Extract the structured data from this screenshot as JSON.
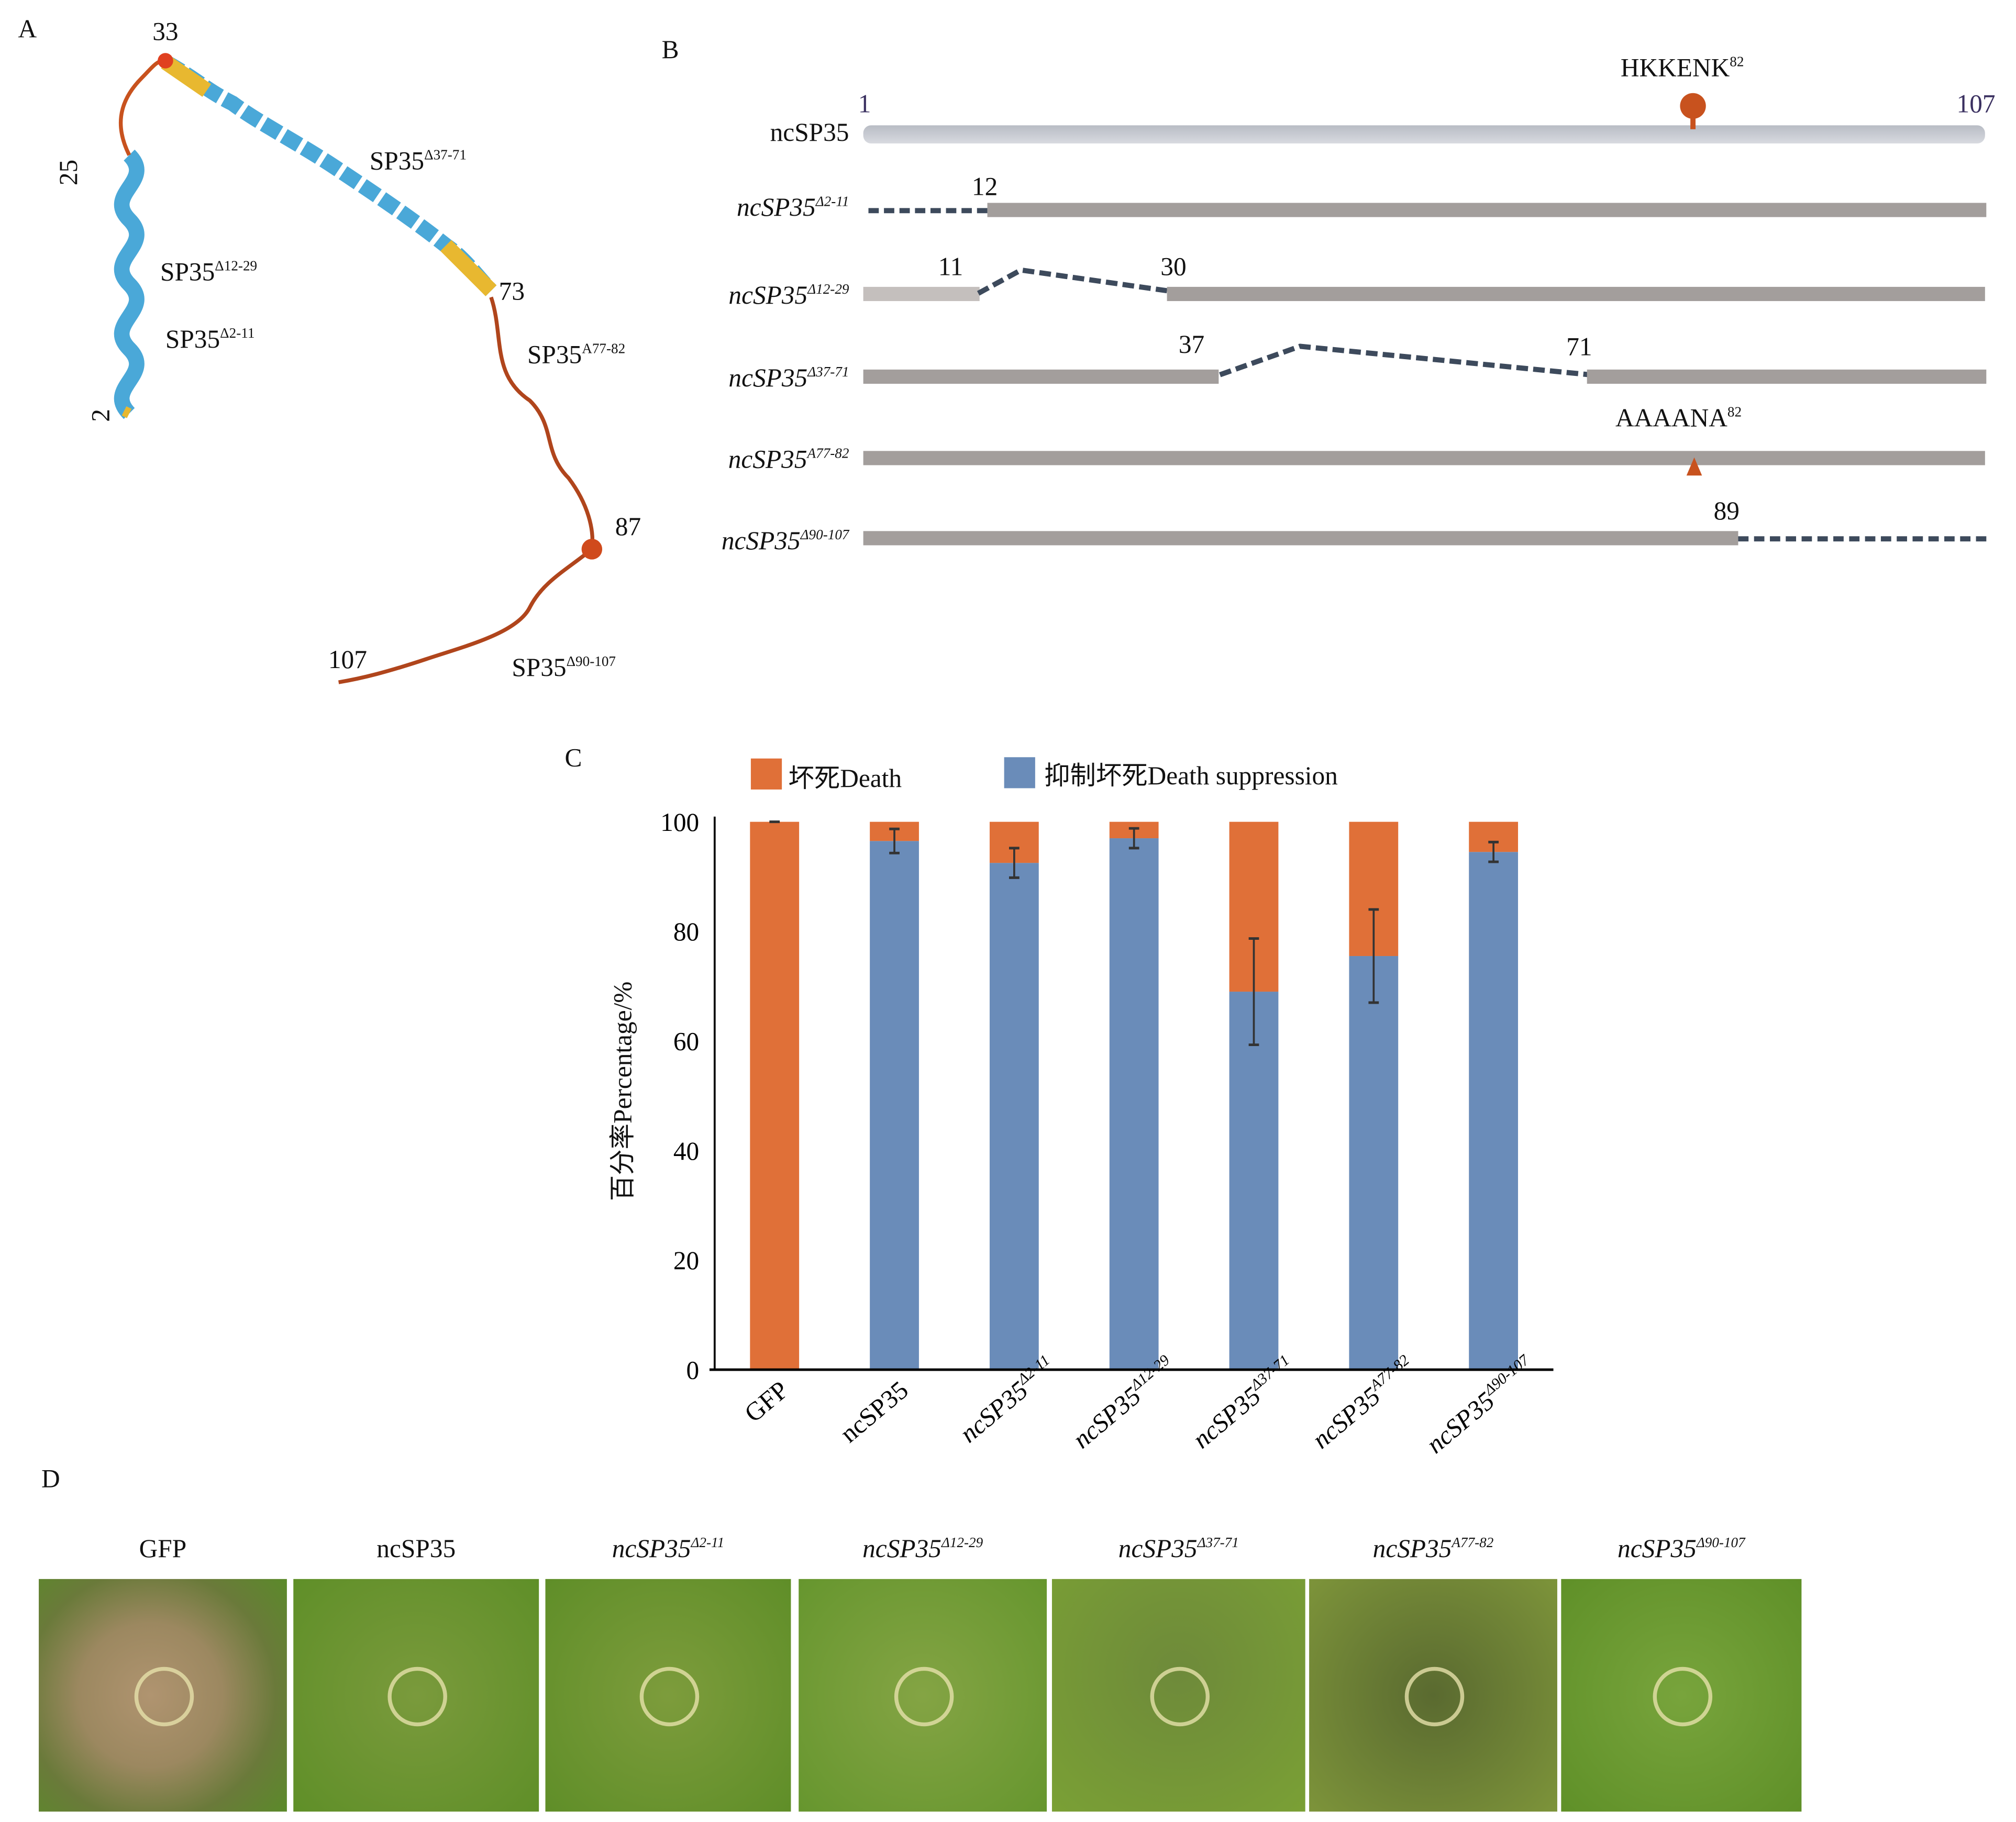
{
  "panels": {
    "a": "A",
    "b": "B",
    "c": "C",
    "d": "D"
  },
  "structure": {
    "residues": [
      "2",
      "25",
      "33",
      "73",
      "87",
      "107"
    ],
    "labels": [
      "SP35",
      "SP35",
      "SP35",
      "SP35",
      "SP35"
    ],
    "sups": [
      "Δ12-29",
      "Δ2-11",
      "Δ37-71",
      "A77-82",
      "Δ90-107"
    ]
  },
  "diagram": {
    "start": "1",
    "end": "107",
    "motif": "HKKENK",
    "motif_sup": "82",
    "mutant_motif": "AAAANA",
    "mutant_motif_sup": "82",
    "rows": [
      {
        "name": "ncSP35",
        "sup": ""
      },
      {
        "name": "ncSP35",
        "sup": "Δ2-11",
        "marks": [
          "12"
        ]
      },
      {
        "name": "ncSP35",
        "sup": "Δ12-29",
        "marks": [
          "11",
          "30"
        ]
      },
      {
        "name": "ncSP35",
        "sup": "Δ37-71",
        "marks": [
          "37",
          "71"
        ]
      },
      {
        "name": "ncSP35",
        "sup": "A77-82"
      },
      {
        "name": "ncSP35",
        "sup": "Δ90-107",
        "marks": [
          "89"
        ]
      }
    ],
    "colors": {
      "track": "#a39e9c",
      "deletion": "#3d4a5c",
      "motif": "#c8521e"
    }
  },
  "chart_data": {
    "type": "bar",
    "stacked": true,
    "categories": [
      "GFP",
      "ncSP35",
      "ncSP35Δ2-11",
      "ncSP35Δ12-29",
      "ncSP35Δ37-71",
      "ncSP35A77-82",
      "ncSP35Δ90-107"
    ],
    "category_labels": [
      {
        "name": "GFP",
        "sup": ""
      },
      {
        "name": "ncSP35",
        "sup": ""
      },
      {
        "name": "ncSP35",
        "sup": "Δ2-11"
      },
      {
        "name": "ncSP35",
        "sup": "Δ12-29"
      },
      {
        "name": "ncSP35",
        "sup": "Δ37-71"
      },
      {
        "name": "ncSP35",
        "sup": "A77-82"
      },
      {
        "name": "ncSP35",
        "sup": "Δ90-107"
      }
    ],
    "series": [
      {
        "name": "抑制坏死Death suppression",
        "color": "#6a8cb9",
        "values": [
          0,
          96.5,
          92.5,
          97,
          69,
          75.5,
          94.5
        ]
      },
      {
        "name": "坏死Death",
        "color": "#e07038",
        "values": [
          100,
          3.5,
          7.5,
          3,
          31,
          24.5,
          5.5
        ]
      }
    ],
    "error": [
      0.3,
      2.2,
      2.7,
      1.8,
      9.7,
      8.5,
      1.8
    ],
    "ylabel": "百分率Percentage/%",
    "xlabel": "",
    "ylim": [
      0,
      100
    ],
    "yticks": [
      "0",
      "20",
      "40",
      "60",
      "80",
      "100"
    ],
    "legend": {
      "position": "top",
      "entries": [
        "坏死Death",
        "抑制坏死Death suppression"
      ]
    },
    "grid": false
  },
  "photos": [
    {
      "name": "GFP",
      "sup": "",
      "italic": false
    },
    {
      "name": "ncSP35",
      "sup": "",
      "italic": false
    },
    {
      "name": "ncSP35",
      "sup": "Δ2-11",
      "italic": true
    },
    {
      "name": "ncSP35",
      "sup": "Δ12-29",
      "italic": true
    },
    {
      "name": "ncSP35",
      "sup": "Δ37-71",
      "italic": true
    },
    {
      "name": "ncSP35",
      "sup": "A77-82",
      "italic": true
    },
    {
      "name": "ncSP35",
      "sup": "Δ90-107",
      "italic": true
    }
  ]
}
